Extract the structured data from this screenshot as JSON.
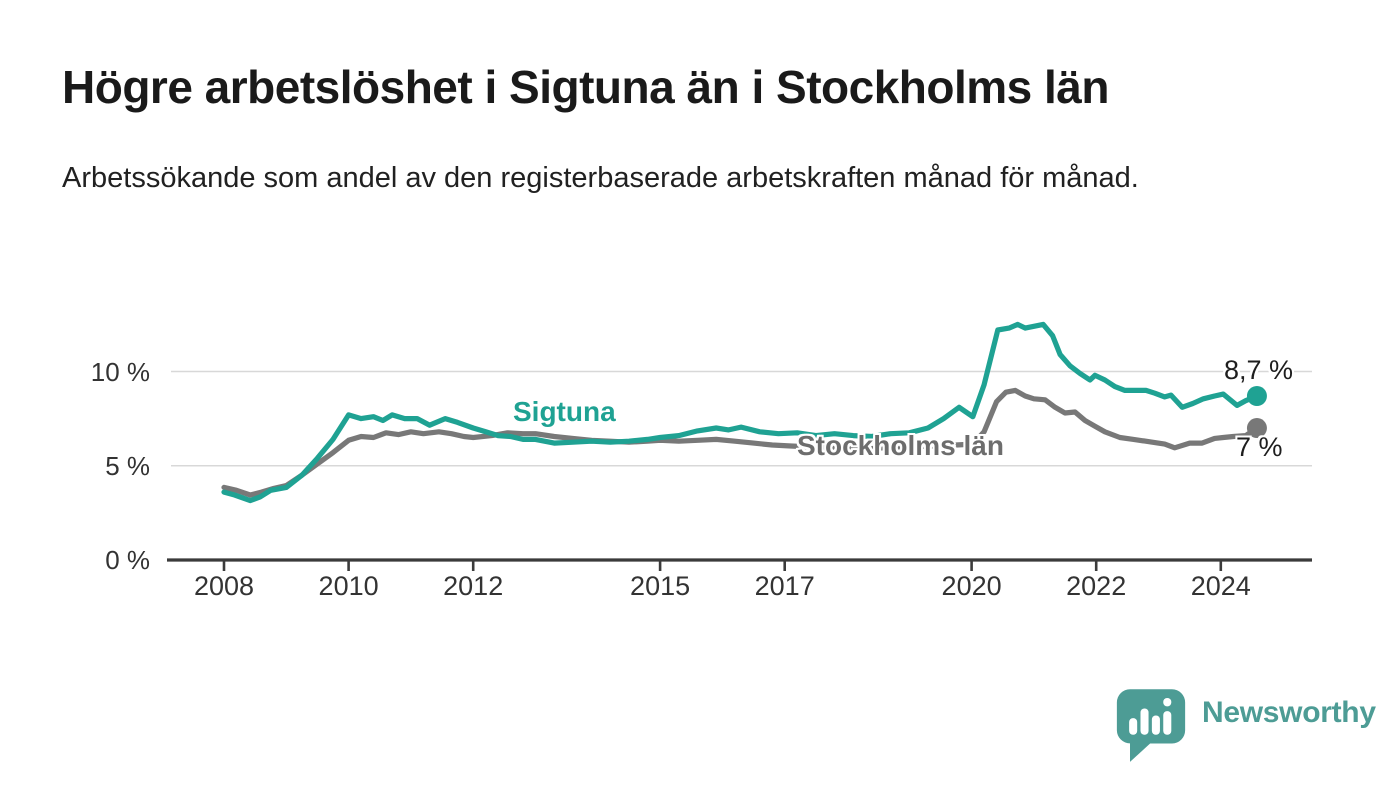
{
  "header": {
    "title": "Högre arbetslöshet i Sigtuna än i Stockholms län",
    "subtitle": "Arbetssökande som andel av den registerbaserade arbetskraften månad för månad."
  },
  "chart_data": {
    "type": "line",
    "title": "Högre arbetslöshet i Sigtuna än i Stockholms län",
    "subtitle": "Arbetssökande som andel av den registerbaserade arbetskraften månad för månad.",
    "x_axis": {
      "ticks": [
        2008,
        2010,
        2012,
        2015,
        2017,
        2020,
        2022,
        2024
      ],
      "range": [
        2007.1,
        2025.4
      ]
    },
    "y_axis": {
      "ticks": [
        0,
        5,
        10
      ],
      "tick_labels": [
        "0 %",
        "5 %",
        "10 %"
      ],
      "range": [
        0,
        14
      ],
      "grid": true
    },
    "legend_position": "inline-labels",
    "colors": {
      "grid": "#d8d8d8",
      "axis": "#3b3b3b",
      "tick_text": "#333333",
      "title_text": "#1a1a1a"
    },
    "series": [
      {
        "name": "Sigtuna",
        "color": "#1fa293",
        "end_label": "8,7 %",
        "end_value": 8.7,
        "points": [
          [
            2008.0,
            3.6
          ],
          [
            2008.17,
            3.45
          ],
          [
            2008.42,
            3.15
          ],
          [
            2008.58,
            3.35
          ],
          [
            2008.75,
            3.7
          ],
          [
            2009.0,
            3.85
          ],
          [
            2009.25,
            4.5
          ],
          [
            2009.5,
            5.4
          ],
          [
            2009.75,
            6.4
          ],
          [
            2010.0,
            7.7
          ],
          [
            2010.2,
            7.5
          ],
          [
            2010.4,
            7.6
          ],
          [
            2010.55,
            7.4
          ],
          [
            2010.7,
            7.7
          ],
          [
            2010.9,
            7.5
          ],
          [
            2011.1,
            7.5
          ],
          [
            2011.3,
            7.15
          ],
          [
            2011.55,
            7.5
          ],
          [
            2011.75,
            7.3
          ],
          [
            2012.0,
            7.0
          ],
          [
            2012.2,
            6.8
          ],
          [
            2012.4,
            6.6
          ],
          [
            2012.6,
            6.55
          ],
          [
            2012.8,
            6.4
          ],
          [
            2013.0,
            6.4
          ],
          [
            2013.3,
            6.2
          ],
          [
            2013.6,
            6.25
          ],
          [
            2013.9,
            6.3
          ],
          [
            2014.2,
            6.25
          ],
          [
            2014.5,
            6.3
          ],
          [
            2014.8,
            6.4
          ],
          [
            2015.0,
            6.5
          ],
          [
            2015.3,
            6.6
          ],
          [
            2015.6,
            6.85
          ],
          [
            2015.9,
            7.0
          ],
          [
            2016.1,
            6.9
          ],
          [
            2016.3,
            7.05
          ],
          [
            2016.6,
            6.8
          ],
          [
            2016.9,
            6.7
          ],
          [
            2017.2,
            6.75
          ],
          [
            2017.5,
            6.6
          ],
          [
            2017.8,
            6.7
          ],
          [
            2018.1,
            6.6
          ],
          [
            2018.4,
            6.55
          ],
          [
            2018.7,
            6.7
          ],
          [
            2019.0,
            6.75
          ],
          [
            2019.3,
            7.0
          ],
          [
            2019.55,
            7.5
          ],
          [
            2019.8,
            8.1
          ],
          [
            2020.02,
            7.6
          ],
          [
            2020.2,
            9.3
          ],
          [
            2020.42,
            12.2
          ],
          [
            2020.6,
            12.3
          ],
          [
            2020.74,
            12.5
          ],
          [
            2020.86,
            12.3
          ],
          [
            2021.0,
            12.4
          ],
          [
            2021.15,
            12.5
          ],
          [
            2021.3,
            11.9
          ],
          [
            2021.42,
            10.9
          ],
          [
            2021.58,
            10.3
          ],
          [
            2021.74,
            9.9
          ],
          [
            2021.9,
            9.55
          ],
          [
            2021.98,
            9.8
          ],
          [
            2022.14,
            9.55
          ],
          [
            2022.3,
            9.2
          ],
          [
            2022.46,
            9.0
          ],
          [
            2022.8,
            9.0
          ],
          [
            2022.94,
            8.85
          ],
          [
            2023.1,
            8.65
          ],
          [
            2023.2,
            8.75
          ],
          [
            2023.38,
            8.1
          ],
          [
            2023.55,
            8.3
          ],
          [
            2023.72,
            8.55
          ],
          [
            2023.9,
            8.7
          ],
          [
            2024.04,
            8.8
          ],
          [
            2024.26,
            8.2
          ],
          [
            2024.4,
            8.45
          ],
          [
            2024.58,
            8.7
          ]
        ]
      },
      {
        "name": "Stockholms län",
        "color": "#787878",
        "label_color": "#6d6d6d",
        "end_label": "7 %",
        "end_value": 7.0,
        "points": [
          [
            2008.0,
            3.85
          ],
          [
            2008.2,
            3.7
          ],
          [
            2008.42,
            3.45
          ],
          [
            2008.6,
            3.6
          ],
          [
            2008.8,
            3.8
          ],
          [
            2009.0,
            3.95
          ],
          [
            2009.25,
            4.5
          ],
          [
            2009.5,
            5.1
          ],
          [
            2009.75,
            5.7
          ],
          [
            2010.0,
            6.35
          ],
          [
            2010.2,
            6.55
          ],
          [
            2010.4,
            6.5
          ],
          [
            2010.6,
            6.75
          ],
          [
            2010.8,
            6.65
          ],
          [
            2011.0,
            6.8
          ],
          [
            2011.2,
            6.7
          ],
          [
            2011.45,
            6.8
          ],
          [
            2011.65,
            6.7
          ],
          [
            2011.85,
            6.55
          ],
          [
            2012.0,
            6.5
          ],
          [
            2012.3,
            6.6
          ],
          [
            2012.55,
            6.75
          ],
          [
            2012.8,
            6.7
          ],
          [
            2013.0,
            6.7
          ],
          [
            2013.3,
            6.55
          ],
          [
            2013.6,
            6.45
          ],
          [
            2013.9,
            6.35
          ],
          [
            2014.2,
            6.3
          ],
          [
            2014.5,
            6.25
          ],
          [
            2014.8,
            6.3
          ],
          [
            2015.0,
            6.35
          ],
          [
            2015.3,
            6.3
          ],
          [
            2015.6,
            6.35
          ],
          [
            2015.9,
            6.4
          ],
          [
            2016.2,
            6.3
          ],
          [
            2016.5,
            6.2
          ],
          [
            2016.8,
            6.1
          ],
          [
            2017.1,
            6.05
          ],
          [
            2017.4,
            6.0
          ],
          [
            2017.7,
            5.95
          ],
          [
            2018.0,
            5.95
          ],
          [
            2018.3,
            5.9
          ],
          [
            2018.6,
            5.95
          ],
          [
            2019.0,
            6.0
          ],
          [
            2019.4,
            6.05
          ],
          [
            2019.75,
            6.1
          ],
          [
            2020.02,
            6.15
          ],
          [
            2020.2,
            6.8
          ],
          [
            2020.4,
            8.4
          ],
          [
            2020.55,
            8.9
          ],
          [
            2020.7,
            9.0
          ],
          [
            2020.86,
            8.7
          ],
          [
            2021.0,
            8.55
          ],
          [
            2021.18,
            8.5
          ],
          [
            2021.34,
            8.1
          ],
          [
            2021.5,
            7.8
          ],
          [
            2021.66,
            7.85
          ],
          [
            2021.82,
            7.4
          ],
          [
            2021.98,
            7.1
          ],
          [
            2022.14,
            6.8
          ],
          [
            2022.38,
            6.5
          ],
          [
            2022.6,
            6.4
          ],
          [
            2022.9,
            6.25
          ],
          [
            2023.1,
            6.15
          ],
          [
            2023.26,
            5.95
          ],
          [
            2023.5,
            6.2
          ],
          [
            2023.7,
            6.2
          ],
          [
            2023.9,
            6.45
          ],
          [
            2024.04,
            6.5
          ],
          [
            2024.2,
            6.55
          ],
          [
            2024.4,
            6.6
          ],
          [
            2024.58,
            7.0
          ]
        ]
      }
    ]
  },
  "footer": {
    "brand": "Newsworthy",
    "brand_color": "#4d9c95",
    "logo_icon": "bar-chart-speech-bubble-icon"
  }
}
